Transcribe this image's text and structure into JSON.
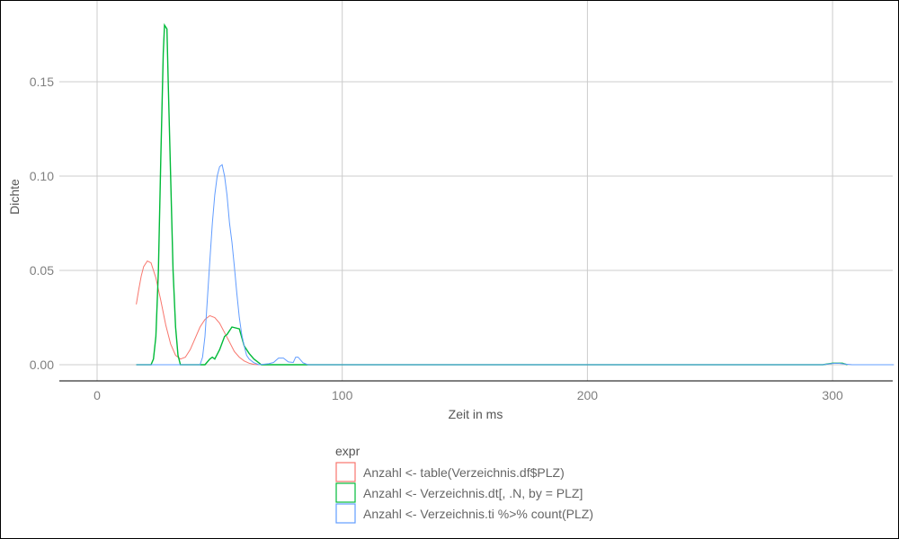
{
  "chart_data": {
    "type": "line",
    "title": "",
    "xlabel": "Zeit in ms",
    "ylabel": "Dichte",
    "xlim": [
      -15,
      325
    ],
    "ylim": [
      -0.009,
      0.193
    ],
    "x_ticks": [
      0,
      100,
      200,
      300
    ],
    "x_tick_labels": [
      "0",
      "100",
      "200",
      "300"
    ],
    "y_ticks": [
      0,
      0.05,
      0.1,
      0.15
    ],
    "y_tick_labels": [
      "0.00",
      "0.05",
      "0.10",
      "0.15"
    ],
    "grid": true,
    "legend": {
      "title": "expr",
      "placement": "bottom"
    },
    "series": [
      {
        "name": "Anzahl <- table(Verzeichnis.df$PLZ)",
        "color": "#F8766D",
        "points": [
          [
            16,
            0.032
          ],
          [
            17,
            0.04
          ],
          [
            18,
            0.047
          ],
          [
            19,
            0.052
          ],
          [
            20.5,
            0.055
          ],
          [
            22,
            0.054
          ],
          [
            24,
            0.046
          ],
          [
            26,
            0.034
          ],
          [
            28,
            0.021
          ],
          [
            30,
            0.011
          ],
          [
            32,
            0.005
          ],
          [
            34,
            0.003
          ],
          [
            36,
            0.004
          ],
          [
            38,
            0.008
          ],
          [
            40,
            0.014
          ],
          [
            42,
            0.02
          ],
          [
            44,
            0.024
          ],
          [
            46,
            0.026
          ],
          [
            48,
            0.025
          ],
          [
            50,
            0.022
          ],
          [
            52,
            0.017
          ],
          [
            54,
            0.012
          ],
          [
            56,
            0.007
          ],
          [
            58,
            0.004
          ],
          [
            60,
            0.002
          ],
          [
            62,
            0.0008
          ],
          [
            64,
            0.0002
          ],
          [
            66,
            0
          ]
        ]
      },
      {
        "name": "Anzahl <- Verzeichnis.dt[, .N, by = PLZ]",
        "color": "#00BA38",
        "points": [
          [
            16,
            0
          ],
          [
            22,
            0
          ],
          [
            23,
            0.003
          ],
          [
            24,
            0.015
          ],
          [
            25,
            0.05
          ],
          [
            26,
            0.11
          ],
          [
            27,
            0.165
          ],
          [
            27.5,
            0.18
          ],
          [
            28.5,
            0.178
          ],
          [
            29,
            0.15
          ],
          [
            30,
            0.1
          ],
          [
            31,
            0.05
          ],
          [
            32,
            0.02
          ],
          [
            33,
            0.005
          ],
          [
            34,
            0
          ],
          [
            35,
            0
          ],
          [
            44,
            0
          ],
          [
            46,
            0.003
          ],
          [
            47,
            0.004
          ],
          [
            48,
            0.003
          ],
          [
            50,
            0.008
          ],
          [
            52,
            0.015
          ],
          [
            53,
            0.016
          ],
          [
            55,
            0.02
          ],
          [
            58,
            0.019
          ],
          [
            60,
            0.01
          ],
          [
            62,
            0.006
          ],
          [
            64,
            0.003
          ],
          [
            65,
            0.002
          ],
          [
            67,
            0
          ],
          [
            92,
            0
          ],
          [
            296,
            0
          ],
          [
            300,
            0.0008
          ],
          [
            304,
            0.0008
          ],
          [
            306,
            0
          ]
        ]
      },
      {
        "name": "Anzahl <- Verzeichnis.ti %>% count(PLZ)",
        "color": "#619CFF",
        "points": [
          [
            16,
            0
          ],
          [
            42,
            0
          ],
          [
            43,
            0.004
          ],
          [
            44,
            0.015
          ],
          [
            45,
            0.035
          ],
          [
            46,
            0.055
          ],
          [
            47,
            0.075
          ],
          [
            48,
            0.09
          ],
          [
            49,
            0.1
          ],
          [
            50,
            0.105
          ],
          [
            51,
            0.106
          ],
          [
            52,
            0.1
          ],
          [
            53,
            0.09
          ],
          [
            54,
            0.075
          ],
          [
            55,
            0.065
          ],
          [
            56,
            0.052
          ],
          [
            57,
            0.038
          ],
          [
            58,
            0.025
          ],
          [
            59,
            0.016
          ],
          [
            60,
            0.01
          ],
          [
            61,
            0.005
          ],
          [
            62,
            0.003
          ],
          [
            64,
            0.001
          ],
          [
            66,
            0
          ],
          [
            70,
            0.0005
          ],
          [
            72,
            0.0012
          ],
          [
            74,
            0.0035
          ],
          [
            76,
            0.0035
          ],
          [
            78,
            0.0015
          ],
          [
            80,
            0.0012
          ],
          [
            81,
            0.004
          ],
          [
            82,
            0.004
          ],
          [
            84,
            0.001
          ],
          [
            86,
            0
          ],
          [
            296,
            0
          ],
          [
            299,
            0.0005
          ],
          [
            302,
            0.0008
          ],
          [
            305,
            0.0004
          ],
          [
            308,
            0
          ],
          [
            325,
            0
          ]
        ]
      }
    ]
  }
}
